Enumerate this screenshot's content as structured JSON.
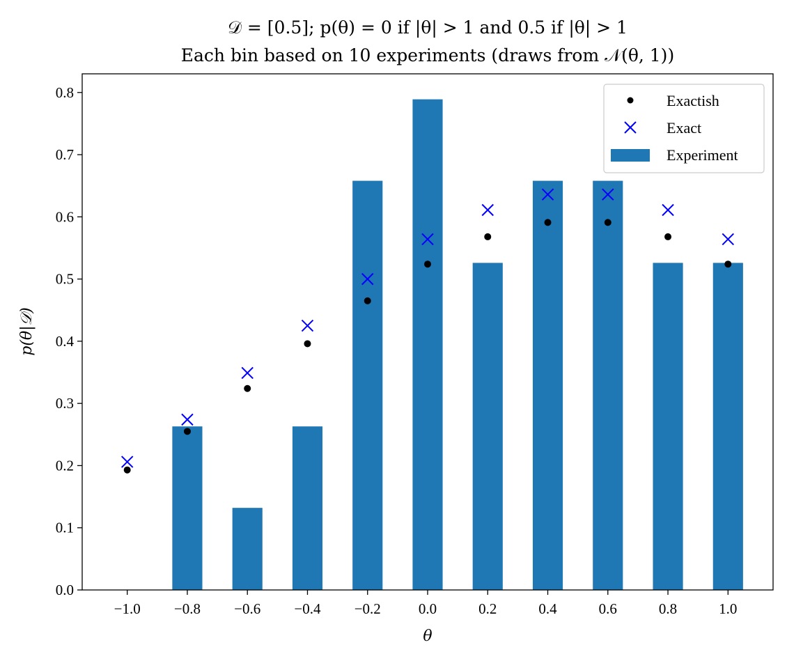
{
  "chart_data": {
    "type": "bar",
    "title_line1": "𝒟 = [0.5]; p(θ) = 0 if |θ| > 1 and 0.5 if |θ| > 1",
    "title_line2": "Each bin based on 10 experiments (draws from 𝒩(θ, 1))",
    "xlabel": "θ",
    "ylabel": "p(θ|𝒟)",
    "xlim": [
      -1.15,
      1.15
    ],
    "ylim": [
      0.0,
      0.83
    ],
    "x": [
      -1.0,
      -0.8,
      -0.6,
      -0.4,
      -0.2,
      0.0,
      0.2,
      0.4,
      0.6,
      0.8,
      1.0
    ],
    "x_tick_labels": [
      "−1.0",
      "−0.8",
      "−0.6",
      "−0.4",
      "−0.2",
      "0.0",
      "0.2",
      "0.4",
      "0.6",
      "0.8",
      "1.0"
    ],
    "y_ticks": [
      0.0,
      0.1,
      0.2,
      0.3,
      0.4,
      0.5,
      0.6,
      0.7,
      0.8
    ],
    "y_tick_labels": [
      "0.0",
      "0.1",
      "0.2",
      "0.3",
      "0.4",
      "0.5",
      "0.6",
      "0.7",
      "0.8"
    ],
    "bar_width": 0.1,
    "grid": false,
    "legend_position": "top-right",
    "series": [
      {
        "name": "Exactish",
        "kind": "points",
        "color": "#000000",
        "values": [
          0.193,
          0.255,
          0.324,
          0.396,
          0.465,
          0.524,
          0.568,
          0.591,
          0.591,
          0.568,
          0.524
        ]
      },
      {
        "name": "Exact",
        "kind": "x-markers",
        "color": "#0000ff",
        "values": [
          0.206,
          0.274,
          0.349,
          0.425,
          0.5,
          0.564,
          0.611,
          0.636,
          0.636,
          0.611,
          0.564
        ]
      },
      {
        "name": "Experiment",
        "kind": "bars",
        "color": "#1f77b4",
        "values": [
          0.0,
          0.263,
          0.132,
          0.263,
          0.658,
          0.789,
          0.526,
          0.658,
          0.658,
          0.526,
          0.526
        ]
      }
    ]
  }
}
